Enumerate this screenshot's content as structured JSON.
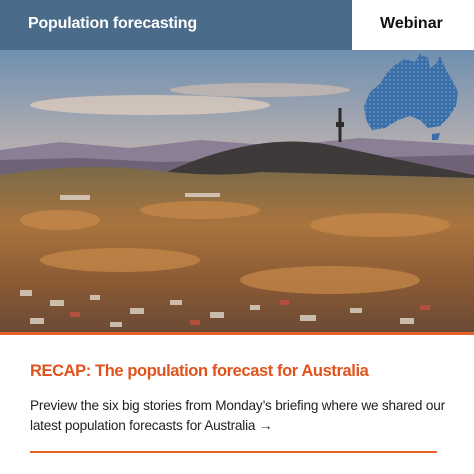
{
  "header": {
    "title": "Population forecasting",
    "tag": "Webinar"
  },
  "headline": "RECAP: The population forecast for Australia",
  "body": "Preview the six big stories from Monday’s briefing where we shared our latest population forecasts for Australia →"
}
